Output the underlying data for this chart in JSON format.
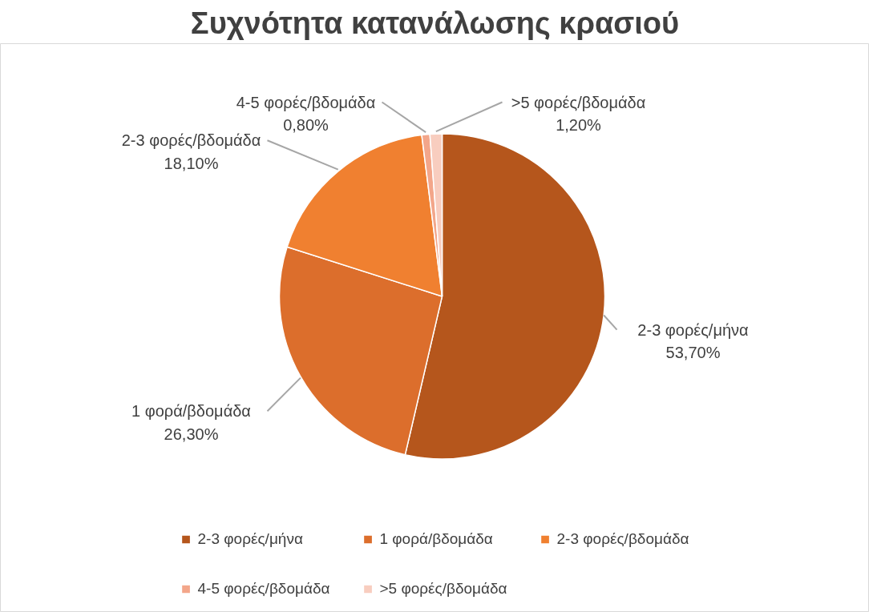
{
  "chart_data": {
    "type": "pie",
    "title": "Συχνότητα κατανάλωσης κρασιού",
    "categories": [
      "2-3 φορές/μήνα",
      "1 φορά/βδομάδα",
      "2-3 φορές/βδομάδα",
      "4-5 φορές/βδομάδα",
      ">5 φορές/βδομάδα"
    ],
    "values": [
      53.7,
      26.3,
      18.1,
      0.8,
      1.2
    ],
    "value_labels": [
      "53,70%",
      "26,30%",
      "18,10%",
      "0,80%",
      "1,20%"
    ],
    "colors": [
      "#b5561c",
      "#dc6e2c",
      "#f08030",
      "#f3a68a",
      "#f8cdbf"
    ],
    "legend": "bottom"
  }
}
